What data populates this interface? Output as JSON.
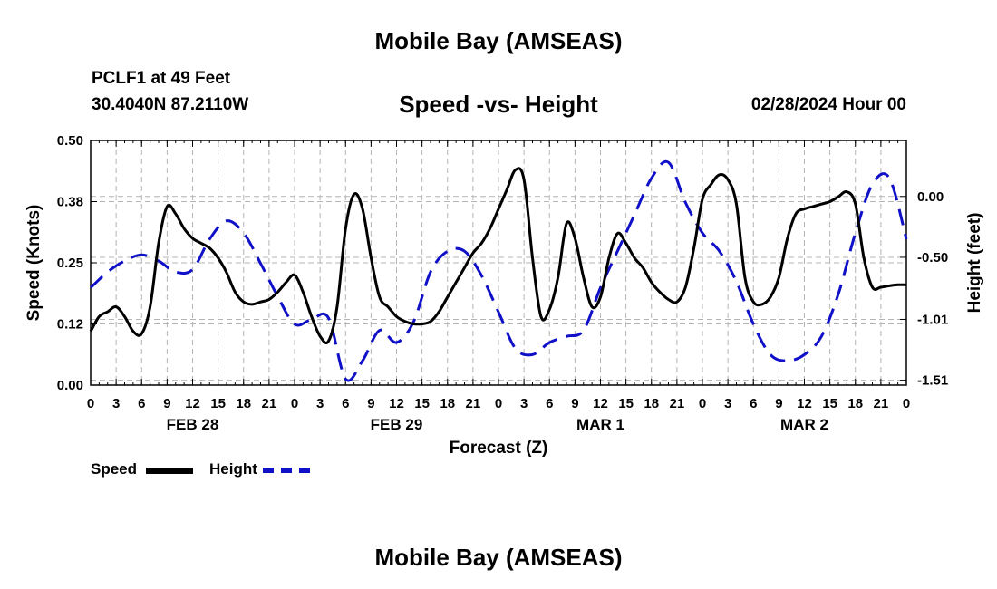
{
  "header": {
    "title": "Mobile Bay (AMSEAS)",
    "station": "PCLF1 at 49 Feet",
    "coords": "30.4040N  87.2110W",
    "subtitle": "Speed -vs- Height",
    "date": "02/28/2024 Hour 00"
  },
  "footer": {
    "title": "Mobile Bay (AMSEAS)"
  },
  "legend": {
    "speed_label": "Speed",
    "height_label": "Height"
  },
  "chart_data": {
    "type": "line",
    "x_unit": "forecast hour",
    "xlim": [
      0,
      96
    ],
    "x_ticks": [
      0,
      3,
      6,
      9,
      12,
      15,
      18,
      21,
      24,
      27,
      30,
      33,
      36,
      39,
      42,
      45,
      48,
      51,
      54,
      57,
      60,
      63,
      66,
      69,
      72,
      75,
      78,
      81,
      84,
      87,
      90,
      93,
      96
    ],
    "x_tick_labels": [
      "0",
      "3",
      "6",
      "9",
      "12",
      "15",
      "18",
      "21",
      "0",
      "3",
      "6",
      "9",
      "12",
      "15",
      "18",
      "21",
      "0",
      "3",
      "6",
      "9",
      "12",
      "15",
      "18",
      "21",
      "0",
      "3",
      "6",
      "9",
      "12",
      "15",
      "18",
      "21",
      "0"
    ],
    "day_labels": [
      {
        "hour": 12,
        "label": "FEB 28"
      },
      {
        "hour": 36,
        "label": "FEB 29"
      },
      {
        "hour": 60,
        "label": "MAR 1"
      },
      {
        "hour": 84,
        "label": "MAR 2"
      }
    ],
    "xlabel": "Forecast (Z)",
    "left_axis": {
      "label": "Speed (Knots)",
      "ylim": [
        0.0,
        0.5
      ],
      "ticks": [
        0.0,
        0.125,
        0.25,
        0.375,
        0.5
      ],
      "tick_labels": [
        "0.00",
        "0.12",
        "0.25",
        "0.38",
        "0.50"
      ]
    },
    "right_axis": {
      "label": "Height (feet)",
      "ylim": [
        -1.55,
        0.46
      ],
      "ticks": [
        0.0,
        -0.5,
        -1.01,
        -1.51
      ],
      "tick_labels": [
        "0.00",
        "-0.50",
        "-1.01",
        "-1.51"
      ]
    },
    "series": [
      {
        "name": "Speed",
        "axis": "left",
        "color": "#000000",
        "style": "solid",
        "x": [
          0,
          1,
          2,
          3,
          4,
          5,
          6,
          7,
          8,
          9,
          10,
          11,
          12,
          13,
          14,
          15,
          16,
          17,
          18,
          19,
          20,
          21,
          22,
          23,
          24,
          25,
          26,
          27,
          28,
          29,
          30,
          31,
          32,
          33,
          34,
          35,
          36,
          37,
          38,
          39,
          40,
          41,
          42,
          43,
          44,
          45,
          46,
          47,
          48,
          49,
          50,
          51,
          52,
          53,
          54,
          55,
          56,
          57,
          58,
          59,
          60,
          61,
          62,
          63,
          64,
          65,
          66,
          67,
          68,
          69,
          70,
          71,
          72,
          73,
          74,
          75,
          76,
          77,
          78,
          79,
          80,
          81,
          82,
          83,
          84,
          85,
          86,
          87,
          88,
          89,
          90,
          91,
          92,
          93,
          94,
          95,
          96
        ],
        "values": [
          0.11,
          0.14,
          0.15,
          0.16,
          0.14,
          0.11,
          0.105,
          0.16,
          0.29,
          0.365,
          0.35,
          0.32,
          0.3,
          0.29,
          0.28,
          0.26,
          0.23,
          0.19,
          0.17,
          0.165,
          0.17,
          0.175,
          0.19,
          0.21,
          0.225,
          0.19,
          0.14,
          0.1,
          0.09,
          0.16,
          0.32,
          0.39,
          0.36,
          0.26,
          0.18,
          0.16,
          0.14,
          0.13,
          0.125,
          0.125,
          0.13,
          0.15,
          0.18,
          0.21,
          0.24,
          0.27,
          0.29,
          0.32,
          0.36,
          0.4,
          0.44,
          0.42,
          0.26,
          0.14,
          0.155,
          0.22,
          0.33,
          0.3,
          0.22,
          0.16,
          0.18,
          0.26,
          0.31,
          0.29,
          0.26,
          0.24,
          0.21,
          0.19,
          0.175,
          0.17,
          0.2,
          0.28,
          0.38,
          0.41,
          0.43,
          0.42,
          0.37,
          0.22,
          0.17,
          0.165,
          0.18,
          0.22,
          0.3,
          0.35,
          0.36,
          0.365,
          0.37,
          0.375,
          0.385,
          0.395,
          0.37,
          0.26,
          0.2,
          0.2,
          0.203,
          0.205,
          0.205
        ]
      },
      {
        "name": "Height",
        "axis": "right",
        "color": "#1010c8",
        "style": "dashed",
        "x": [
          0,
          2,
          4,
          6,
          8,
          10,
          12,
          14,
          16,
          18,
          20,
          22,
          24,
          26,
          28,
          30,
          32,
          34,
          36,
          38,
          40,
          42,
          44,
          46,
          48,
          50,
          52,
          54,
          56,
          58,
          60,
          62,
          64,
          66,
          68,
          70,
          72,
          74,
          76,
          78,
          80,
          82,
          84,
          86,
          88,
          90,
          92,
          94,
          96
        ],
        "values": [
          -0.75,
          -0.62,
          -0.53,
          -0.48,
          -0.53,
          -0.62,
          -0.6,
          -0.35,
          -0.2,
          -0.3,
          -0.55,
          -0.82,
          -1.05,
          -1.01,
          -1.0,
          -1.5,
          -1.35,
          -1.1,
          -1.2,
          -1.03,
          -0.62,
          -0.45,
          -0.45,
          -0.65,
          -0.95,
          -1.25,
          -1.3,
          -1.2,
          -1.15,
          -1.1,
          -0.75,
          -0.45,
          -0.15,
          0.15,
          0.28,
          -0.05,
          -0.3,
          -0.45,
          -0.7,
          -1.05,
          -1.3,
          -1.35,
          -1.3,
          -1.15,
          -0.8,
          -0.3,
          0.1,
          0.15,
          -0.35
        ]
      }
    ]
  }
}
